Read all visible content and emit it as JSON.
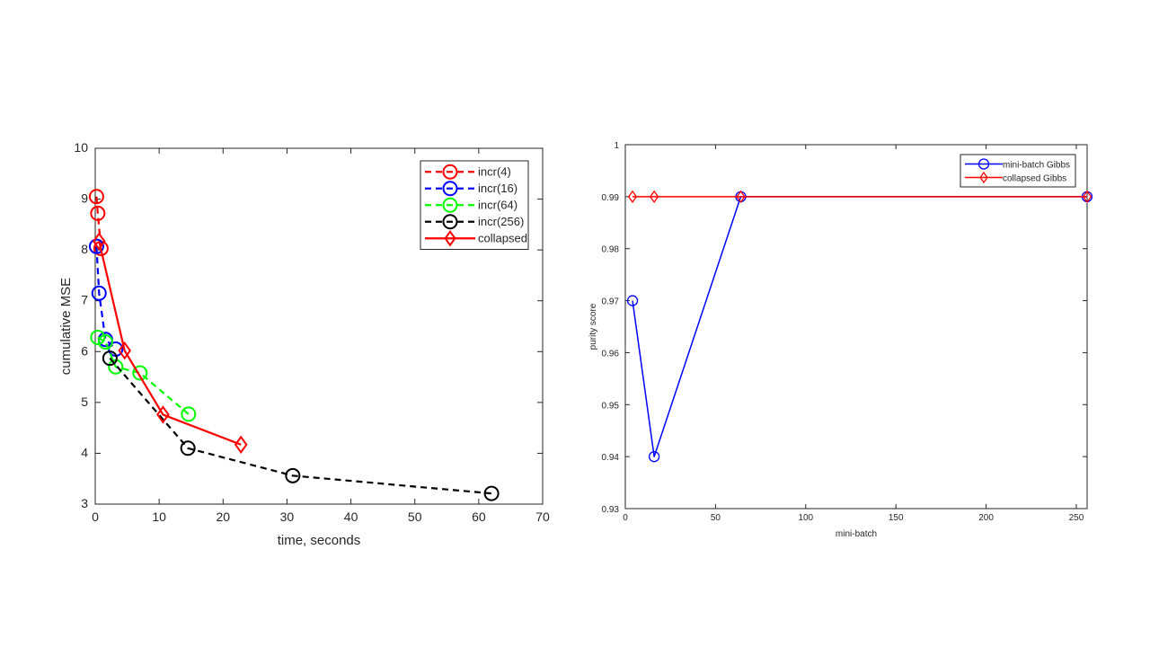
{
  "chart_data": [
    {
      "type": "line",
      "title": "",
      "xlabel": "time, seconds",
      "ylabel": "cumulative MSE",
      "xlim": [
        0,
        70
      ],
      "ylim": [
        3,
        10
      ],
      "xticks": [
        0,
        10,
        20,
        30,
        40,
        50,
        60,
        70
      ],
      "yticks": [
        3,
        4,
        5,
        6,
        7,
        8,
        9,
        10
      ],
      "grid": false,
      "legend_position": "top-right",
      "series": [
        {
          "name": "incr(4)",
          "color": "#ff0000",
          "line": "dashed",
          "marker": "circle",
          "x": [
            0.2,
            0.4,
            0.9
          ],
          "y": [
            9.05,
            8.72,
            8.03
          ]
        },
        {
          "name": "incr(16)",
          "color": "#0000ff",
          "line": "dashed",
          "marker": "circle",
          "x": [
            0.2,
            0.6,
            1.6,
            3.2
          ],
          "y": [
            8.07,
            7.15,
            6.24,
            6.05
          ]
        },
        {
          "name": "incr(64)",
          "color": "#00ff00",
          "line": "dashed",
          "marker": "circle",
          "x": [
            0.4,
            1.6,
            3.2,
            7.0,
            14.6
          ],
          "y": [
            6.28,
            6.19,
            5.7,
            5.58,
            4.77
          ]
        },
        {
          "name": "incr(256)",
          "color": "#000000",
          "line": "dashed",
          "marker": "circle",
          "x": [
            2.3,
            14.5,
            30.9,
            62.0
          ],
          "y": [
            5.87,
            4.1,
            3.56,
            3.21
          ]
        },
        {
          "name": "collapsed",
          "color": "#ff0000",
          "line": "solid",
          "marker": "diamond",
          "x": [
            0.6,
            4.6,
            10.6,
            22.8
          ],
          "y": [
            8.17,
            6.02,
            4.76,
            4.17
          ]
        }
      ]
    },
    {
      "type": "line",
      "title": "",
      "xlabel": "mini-batch",
      "ylabel": "purity score",
      "xlim": [
        0,
        256
      ],
      "ylim": [
        0.93,
        1
      ],
      "xticks": [
        0,
        50,
        100,
        150,
        200,
        250
      ],
      "yticks": [
        0.93,
        0.94,
        0.95,
        0.96,
        0.97,
        0.98,
        0.99,
        1
      ],
      "ytick_labels": [
        "0.93",
        "0.94",
        "0.95",
        "0.96",
        "0.97",
        "0.98",
        "0.99",
        "1"
      ],
      "grid": false,
      "legend_position": "top-right",
      "series": [
        {
          "name": "mini-batch Gibbs",
          "color": "#0000ff",
          "line": "solid",
          "marker": "circle",
          "x": [
            4,
            16,
            64,
            256
          ],
          "y": [
            0.97,
            0.94,
            0.99,
            0.99
          ]
        },
        {
          "name": "collapsed Gibbs",
          "color": "#ff0000",
          "line": "solid",
          "marker": "diamond",
          "x": [
            4,
            16,
            64,
            256
          ],
          "y": [
            0.99,
            0.99,
            0.99,
            0.99
          ]
        }
      ]
    }
  ]
}
